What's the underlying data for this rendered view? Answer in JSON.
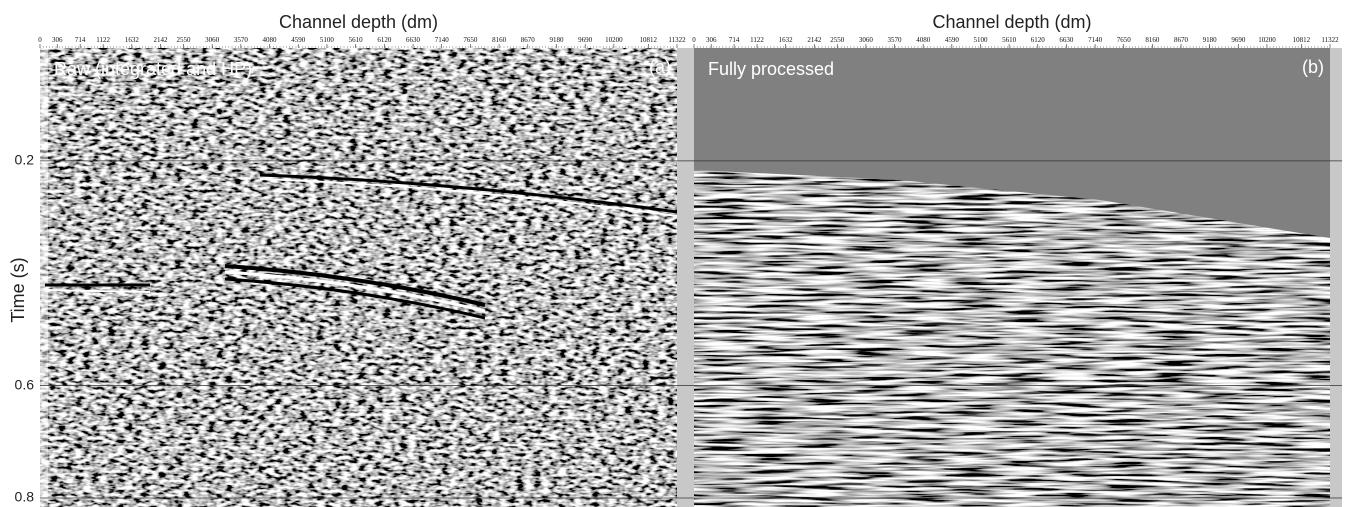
{
  "chart_data": [
    {
      "type": "seismic",
      "title": "Channel depth (dm)",
      "ylabel": "Time (s)",
      "panel_label": "Raw (integrated and HP)",
      "panel_tag": "(a)",
      "xlim": [
        0,
        11322
      ],
      "xticks": [
        0,
        306,
        714,
        1122,
        1632,
        2142,
        2550,
        3060,
        3570,
        4080,
        4590,
        5100,
        5610,
        6120,
        6630,
        7140,
        7650,
        8160,
        8670,
        9180,
        9690,
        10200,
        10812,
        11322
      ],
      "ylim": [
        0,
        0.8
      ],
      "yticks": [
        0.2,
        0.6,
        0.8
      ]
    },
    {
      "type": "seismic",
      "title": "Channel depth (dm)",
      "panel_label": "Fully processed",
      "panel_tag": "(b)",
      "xlim": [
        0,
        11322
      ],
      "xticks": [
        0,
        306,
        714,
        1122,
        1632,
        2142,
        2550,
        3060,
        3570,
        4080,
        4590,
        5100,
        5610,
        6120,
        6630,
        7140,
        7650,
        8160,
        8670,
        9180,
        9690,
        10200,
        10812,
        11322
      ],
      "ylim": [
        0,
        0.8
      ]
    }
  ]
}
